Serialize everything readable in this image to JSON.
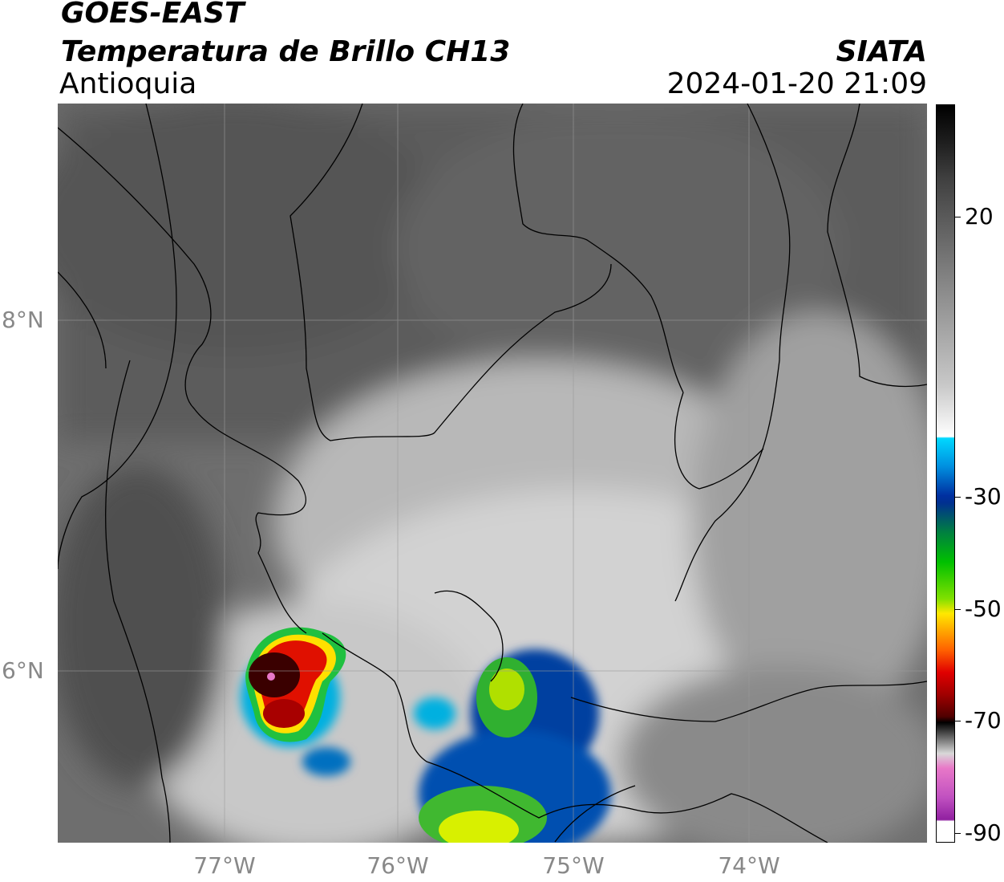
{
  "header": {
    "satellite": "GOES-EAST",
    "product": "Temperatura de Brillo CH13",
    "region": "Antioquia",
    "agency": "SIATA",
    "datetime": "2024-01-20 21:09"
  },
  "map": {
    "lat_labels": [
      "8°N",
      "6°N"
    ],
    "lon_labels": [
      "77°W",
      "76°W",
      "75°W",
      "74°W"
    ]
  },
  "colorbar": {
    "tick_labels": [
      "20",
      "-30",
      "-50",
      "-70",
      "-90"
    ],
    "colors": {
      "warm": "#4a4a4a",
      "neutral": "#ffffff",
      "cyan": "#00d8ff",
      "blue": "#0030a0",
      "green": "#00c000",
      "yellow": "#ffe800",
      "orange": "#ff8000",
      "red": "#e00000",
      "darkred": "#600000",
      "black": "#000000",
      "pink": "#e878c8",
      "purple": "#a020a0"
    }
  }
}
